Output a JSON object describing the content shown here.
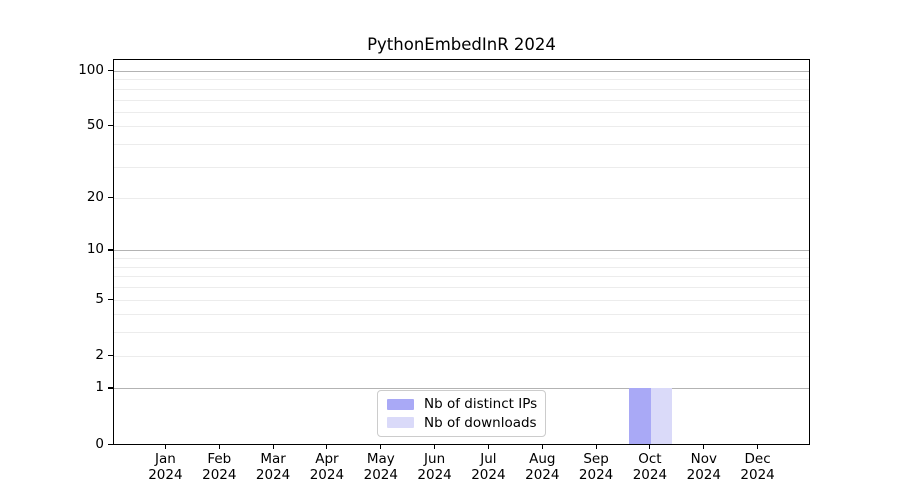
{
  "chart_data": {
    "type": "bar",
    "title": "PythonEmbedInR 2024",
    "categories": [
      "Jan",
      "Feb",
      "Mar",
      "Apr",
      "May",
      "Jun",
      "Jul",
      "Aug",
      "Sep",
      "Oct",
      "Nov",
      "Dec"
    ],
    "year_label": "2024",
    "series": [
      {
        "name": "Nb of distinct IPs",
        "color": "#a9a9f6",
        "values": [
          0,
          0,
          0,
          0,
          0,
          0,
          0,
          0,
          0,
          1,
          0,
          0
        ]
      },
      {
        "name": "Nb of downloads",
        "color": "#dadaf9",
        "values": [
          0,
          0,
          0,
          0,
          0,
          0,
          0,
          0,
          0,
          1,
          0,
          0
        ]
      }
    ],
    "y_ticks": [
      0,
      1,
      2,
      5,
      10,
      20,
      50,
      100
    ],
    "y_scale": "log1p",
    "ylim": [
      0,
      115
    ],
    "xlabel": "",
    "ylabel": "",
    "grid": true,
    "legend": {
      "labels": [
        "Nb of distinct IPs",
        "Nb of downloads"
      ],
      "position": "lower center inside"
    }
  },
  "colors": {
    "background": "#ffffff",
    "axis": "#000000",
    "major_gridline": "#b3b3b3",
    "minor_gridline": "#ececec",
    "legend_border": "#cccccc",
    "bar_distinct_ips": "#a9a9f6",
    "bar_downloads": "#dadaf9"
  }
}
